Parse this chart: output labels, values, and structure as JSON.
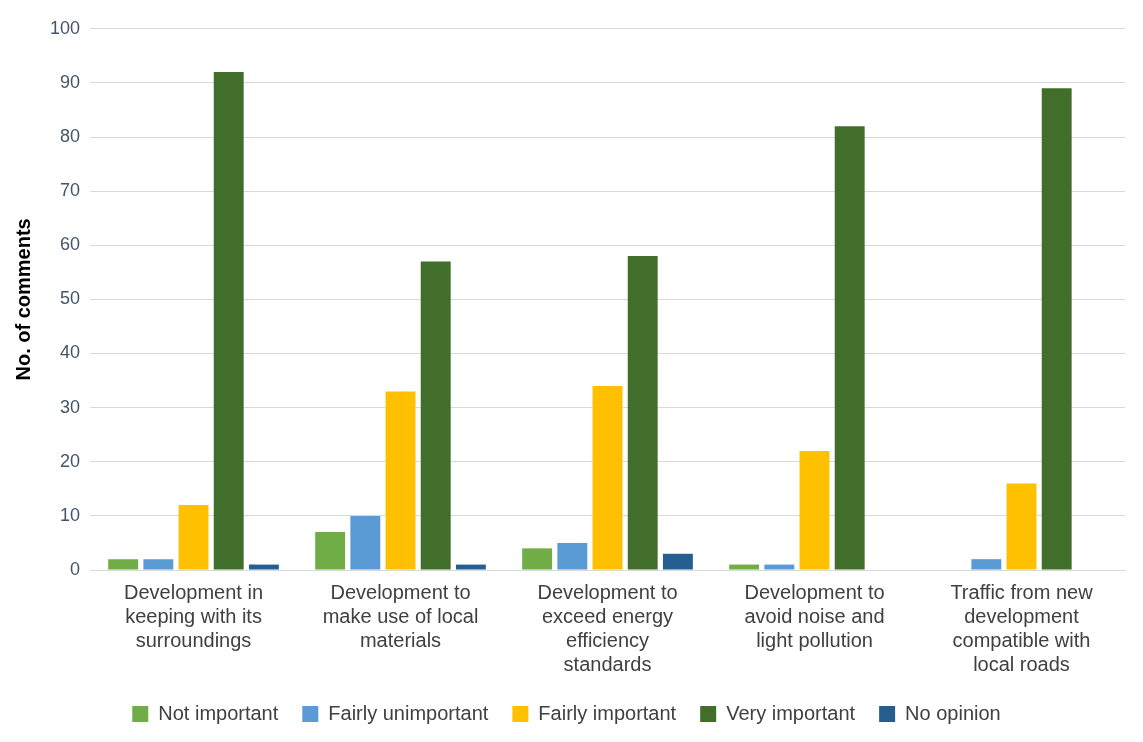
{
  "chart_data": {
    "type": "bar",
    "ylabel": "No. of comments",
    "categories": [
      "Development in keeping with its surroundings",
      "Development to make use of local materials",
      "Development to exceed energy efficiency standards",
      "Development to avoid noise and light pollution",
      "Traffic from new development compatible with local roads"
    ],
    "series": [
      {
        "name": "Not important",
        "color": "#70ad47",
        "values": [
          2,
          7,
          4,
          1,
          0
        ]
      },
      {
        "name": "Fairly unimportant",
        "color": "#5b9bd5",
        "values": [
          2,
          10,
          5,
          1,
          2
        ]
      },
      {
        "name": "Fairly important",
        "color": "#ffc000",
        "values": [
          12,
          33,
          34,
          22,
          16
        ]
      },
      {
        "name": "Very important",
        "color": "#416e2b",
        "values": [
          92,
          57,
          58,
          82,
          89
        ]
      },
      {
        "name": "No opinion",
        "color": "#255e91",
        "values": [
          1,
          1,
          3,
          0,
          0
        ]
      }
    ],
    "ylim": [
      0,
      100
    ],
    "yticks": [
      0,
      10,
      20,
      30,
      40,
      50,
      60,
      70,
      80,
      90,
      100
    ],
    "grid": "y",
    "legend": "bottom"
  }
}
